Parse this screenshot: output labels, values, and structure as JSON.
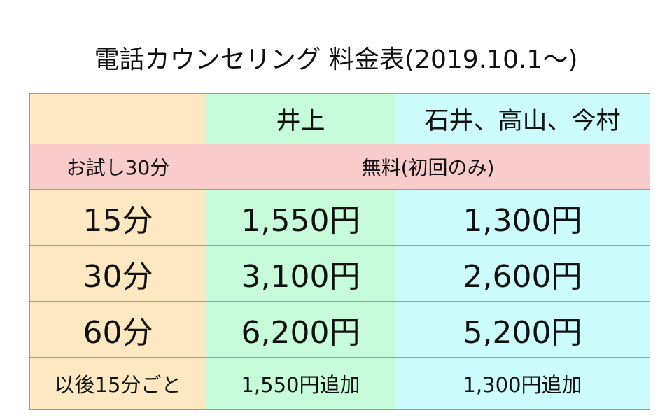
{
  "title": "電話カウンセリング 料金表(2019.10.1〜)",
  "table": {
    "header": {
      "corner": "",
      "col_inoue": "井上",
      "col_others": "石井、高山、今村"
    },
    "trial": {
      "label": "お試し30分",
      "value": "無料(初回のみ)"
    },
    "rows": [
      {
        "label": "15分",
        "inoue": "1,550円",
        "others": "1,300円"
      },
      {
        "label": "30分",
        "inoue": "3,100円",
        "others": "2,600円"
      },
      {
        "label": "60分",
        "inoue": "6,200円",
        "others": "5,200円"
      }
    ],
    "after": {
      "label": "以後15分ごと",
      "inoue": "1,550円追加",
      "others": "1,300円追加"
    }
  },
  "colors": {
    "label_column": "#fde8c2",
    "inoue_column": "#c6fcd9",
    "others_column": "#ccfbfb",
    "trial_row": "#f9cccc",
    "border": "#9a9a9a"
  }
}
